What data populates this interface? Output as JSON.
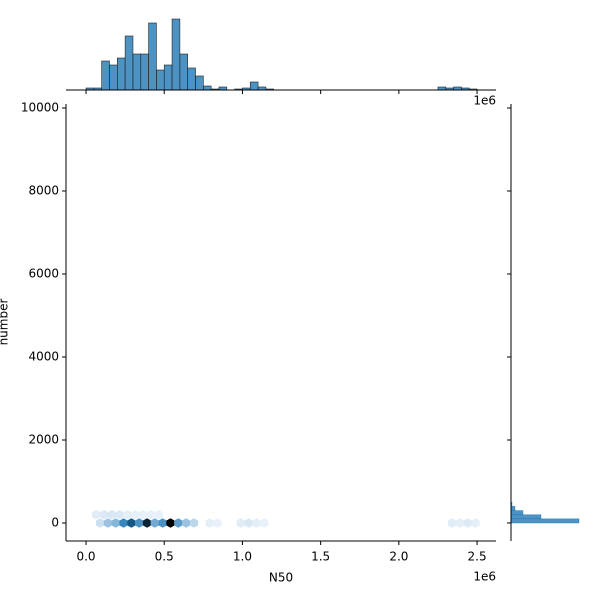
{
  "chart_data": {
    "type": "hexbin",
    "x_label": "N50",
    "y_label": "number",
    "x_offset_label": "1e6",
    "xlim": [
      -128000,
      2621000
    ],
    "ylim": [
      -434,
      10096
    ],
    "xticks": [
      {
        "value": 0,
        "label": "0.0"
      },
      {
        "value": 500000,
        "label": "0.5"
      },
      {
        "value": 1000000,
        "label": "1.0"
      },
      {
        "value": 1500000,
        "label": "1.5"
      },
      {
        "value": 2000000,
        "label": "2.0"
      },
      {
        "value": 2500000,
        "label": "2.5"
      }
    ],
    "yticks": [
      0,
      2000,
      4000,
      6000,
      8000,
      10000
    ],
    "color": "#1f77b4",
    "hexbins": {
      "x": [
        90000,
        140000,
        190000,
        240000,
        290000,
        340000,
        390000,
        440000,
        490000,
        540000,
        590000,
        640000,
        690000,
        790000,
        840000,
        990000,
        1040000,
        1090000,
        1140000,
        2340000,
        2390000,
        2440000,
        2490000,
        65000,
        115000,
        165000,
        215000,
        265000,
        315000,
        365000,
        415000,
        465000
      ],
      "y": [
        0,
        0,
        0,
        0,
        0,
        0,
        0,
        0,
        0,
        0,
        0,
        0,
        0,
        0,
        0,
        0,
        0,
        0,
        0,
        0,
        0,
        0,
        0,
        200,
        200,
        200,
        200,
        200,
        200,
        200,
        200,
        200
      ],
      "counts": [
        8,
        20,
        25,
        45,
        60,
        40,
        75,
        30,
        40,
        85,
        35,
        20,
        12,
        2,
        1,
        3,
        5,
        2,
        1,
        3,
        2,
        4,
        2,
        3,
        4,
        5,
        4,
        2,
        1,
        1,
        1,
        1
      ]
    },
    "x_marginal": {
      "bins": [
        0,
        50000,
        100000,
        150000,
        200000,
        250000,
        300000,
        350000,
        400000,
        450000,
        500000,
        550000,
        600000,
        650000,
        700000,
        750000,
        800000,
        850000,
        900000,
        950000,
        1000000,
        1050000,
        1100000,
        1150000,
        1200000,
        1250000,
        1300000,
        1350000,
        1400000,
        1450000,
        1500000,
        1550000,
        1600000,
        1650000,
        1700000,
        1750000,
        1800000,
        1850000,
        1900000,
        1950000,
        2000000,
        2050000,
        2100000,
        2150000,
        2200000,
        2250000,
        2300000,
        2350000,
        2400000,
        2450000,
        2500000
      ],
      "counts": [
        2,
        2,
        29,
        25,
        32,
        54,
        36,
        36,
        67,
        20,
        25,
        71,
        36,
        22,
        14,
        4,
        1,
        3,
        0,
        1,
        2,
        8,
        3,
        1,
        0,
        0,
        0,
        0,
        0,
        0,
        0,
        0,
        0,
        0,
        0,
        0,
        0,
        0,
        0,
        0,
        0,
        0,
        0,
        0,
        0,
        3,
        2,
        3,
        2,
        1
      ],
      "ylim": [
        0,
        75
      ]
    },
    "y_marginal": {
      "bins": [
        0,
        100,
        200,
        300,
        400,
        500
      ],
      "counts": [
        68,
        30,
        12,
        4,
        1
      ],
      "xlim": [
        0,
        75
      ]
    }
  }
}
